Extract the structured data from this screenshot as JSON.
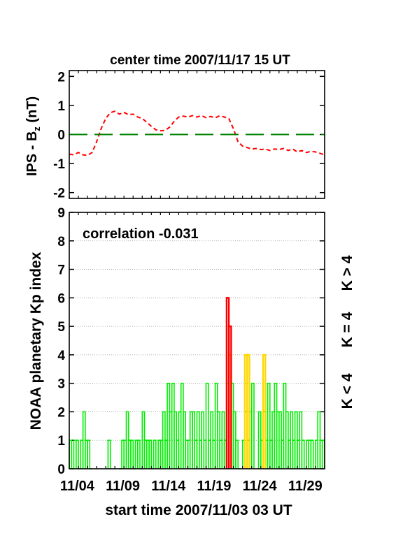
{
  "chart_data": [
    {
      "type": "line",
      "title": "center time 2007/11/17 15 UT",
      "ylabel": "IPS - B",
      "ylabel_sub": "z",
      "ylabel_unit": " (nT)",
      "ylim": [
        -2.2,
        2.2
      ],
      "xlim_days": [
        0,
        28
      ],
      "yticks": [
        "-2",
        "-1",
        "0",
        "1",
        "2"
      ],
      "ytick_values": [
        -2,
        -1,
        0,
        1,
        2
      ],
      "grid": false,
      "series": [
        {
          "color": "#ff0000",
          "style": "dashed",
          "x": [
            0.0,
            0.5,
            1.0,
            1.5,
            2.0,
            2.5,
            3.0,
            3.5,
            4.0,
            4.5,
            5.0,
            5.5,
            6.0,
            6.5,
            7.0,
            7.5,
            8.0,
            8.5,
            9.0,
            9.5,
            10.0,
            10.5,
            11.0,
            11.5,
            12.0,
            12.5,
            13.0,
            13.5,
            14.0,
            14.5,
            15.0,
            15.5,
            16.0,
            16.5,
            17.0,
            17.5,
            18.0,
            18.5,
            19.0,
            19.5,
            20.0,
            20.5,
            21.0,
            21.5,
            22.0,
            22.5,
            23.0,
            23.5,
            24.0,
            24.5,
            25.0,
            25.5,
            26.0,
            26.5,
            27.0,
            27.5,
            28.0
          ],
          "values": [
            -0.68,
            -0.7,
            -0.62,
            -0.7,
            -0.72,
            -0.62,
            -0.25,
            0.2,
            0.55,
            0.75,
            0.8,
            0.7,
            0.76,
            0.68,
            0.7,
            0.6,
            0.55,
            0.42,
            0.28,
            0.16,
            0.13,
            0.14,
            0.25,
            0.45,
            0.6,
            0.63,
            0.6,
            0.65,
            0.6,
            0.65,
            0.58,
            0.62,
            0.57,
            0.65,
            0.6,
            0.55,
            0.2,
            -0.25,
            -0.4,
            -0.45,
            -0.5,
            -0.48,
            -0.52,
            -0.5,
            -0.55,
            -0.5,
            -0.52,
            -0.48,
            -0.55,
            -0.5,
            -0.6,
            -0.55,
            -0.62,
            -0.58,
            -0.6,
            -0.65,
            -0.7
          ]
        },
        {
          "color": "#008000",
          "style": "long-dashed",
          "x": [
            0,
            28
          ],
          "values": [
            0,
            0
          ]
        }
      ]
    },
    {
      "type": "bar",
      "annotation": "correlation -0.031",
      "ylabel": "NOAA planetary Kp index",
      "xlabel": "start time 2007/11/03 03 UT",
      "ylim": [
        0,
        9
      ],
      "xlim_days": [
        0,
        28
      ],
      "yticks": [
        "0",
        "1",
        "2",
        "3",
        "4",
        "5",
        "6",
        "7",
        "8",
        "9"
      ],
      "ytick_values": [
        0,
        1,
        2,
        3,
        4,
        5,
        6,
        7,
        8,
        9
      ],
      "xticks": [
        "11/04",
        "11/09",
        "11/14",
        "11/19",
        "11/24",
        "11/29"
      ],
      "xtick_days": [
        0.875,
        5.875,
        10.875,
        15.875,
        20.875,
        25.875
      ],
      "grid": true,
      "legend_placement": "right, vertical",
      "legend": [
        {
          "label": "K < 4",
          "color": "#00ee00"
        },
        {
          "label": "K = 4",
          "color": "#ffd700"
        },
        {
          "label": "K > 4",
          "color": "#ff0000"
        }
      ],
      "series": [
        {
          "name": "K < 4",
          "color": "#00ee00",
          "x": [
            0.0,
            0.25,
            0.5,
            0.75,
            1.0,
            1.25,
            1.5,
            1.75,
            2.0,
            2.25,
            4.25,
            5.5,
            5.75,
            6.0,
            6.25,
            6.5,
            6.75,
            7.0,
            7.25,
            7.5,
            7.75,
            8.0,
            8.25,
            8.5,
            8.75,
            9.0,
            9.25,
            9.75,
            10.0,
            10.25,
            10.5,
            10.75,
            11.0,
            11.25,
            11.5,
            11.75,
            12.0,
            12.25,
            12.5,
            12.75,
            13.0,
            13.25,
            13.5,
            13.75,
            14.0,
            14.25,
            14.5,
            14.75,
            15.0,
            15.25,
            15.5,
            15.75,
            16.0,
            16.25,
            16.5,
            16.75,
            17.0,
            17.25,
            17.75,
            18.0,
            18.25,
            18.5,
            19.0,
            19.25,
            19.5,
            19.75,
            20.0,
            20.75,
            21.0,
            21.25,
            21.5,
            21.75,
            22.0,
            22.25,
            22.5,
            22.75,
            23.0,
            23.25,
            23.5,
            23.75,
            24.0,
            24.25,
            24.5,
            24.75,
            25.0,
            25.25,
            25.5,
            25.75,
            26.0,
            26.25,
            26.5,
            26.75,
            27.0,
            27.25,
            27.5,
            27.75
          ],
          "values": [
            1,
            0,
            1,
            1,
            0,
            1,
            2,
            1,
            1,
            0,
            1,
            0,
            1,
            1,
            2,
            1,
            1,
            0,
            1,
            1,
            0,
            2,
            1,
            1,
            1,
            0,
            1,
            1,
            1,
            2,
            1,
            3,
            2,
            3,
            2,
            1,
            2,
            3,
            2,
            1,
            1,
            2,
            2,
            1,
            2,
            1,
            2,
            1,
            3,
            1,
            2,
            1,
            3,
            2,
            1,
            2,
            1,
            3,
            3,
            2,
            1,
            0,
            1,
            2,
            1,
            2,
            3,
            2,
            1,
            2,
            1,
            3,
            1,
            2,
            3,
            2,
            2,
            1,
            3,
            2,
            1,
            2,
            1,
            2,
            1,
            2,
            1,
            0,
            1,
            1,
            1,
            0,
            1,
            2,
            1,
            1
          ]
        },
        {
          "name": "K = 4",
          "color": "#ffd700",
          "x": [
            17.5,
            19.25,
            19.5,
            21.25
          ],
          "values": [
            4,
            4,
            4,
            4
          ]
        },
        {
          "name": "K > 4",
          "color": "#ff0000",
          "x": [
            17.25,
            17.5
          ],
          "values": [
            6,
            5
          ]
        }
      ]
    }
  ]
}
